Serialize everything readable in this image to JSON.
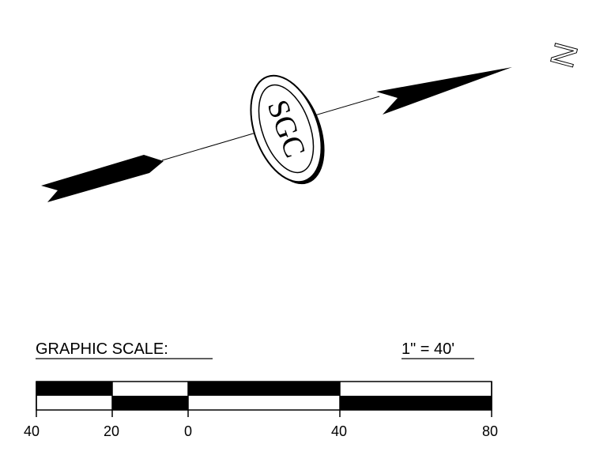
{
  "north_arrow": {
    "direction_label": "N",
    "logo_text": "SGC"
  },
  "graphic_scale": {
    "title": "GRAPHIC SCALE:",
    "ratio": "1\" = 40'",
    "tick_labels": [
      "40",
      "20",
      "0",
      "40",
      "80"
    ]
  },
  "colors": {
    "ink": "#000000",
    "paper": "#ffffff"
  }
}
